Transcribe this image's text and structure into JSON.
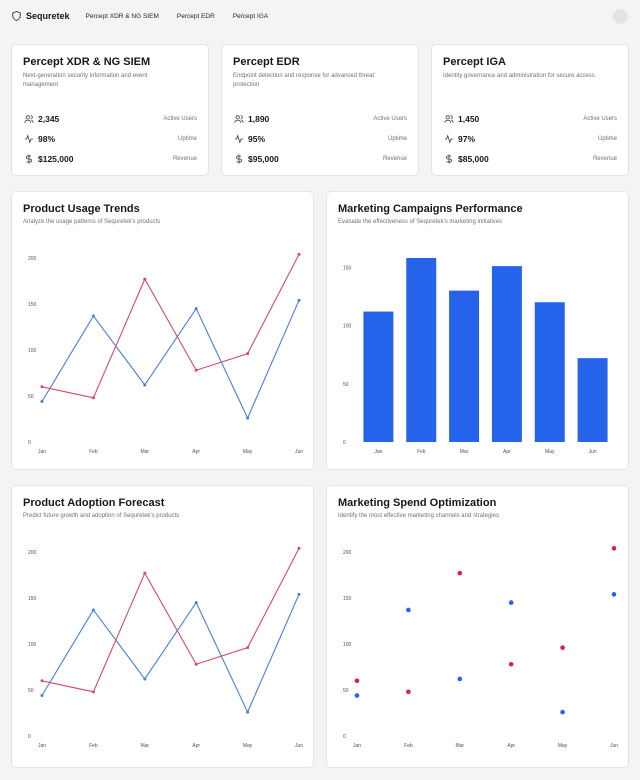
{
  "header": {
    "brand": "Sequretek",
    "nav": [
      "Percept XDR & NG SIEM",
      "Percept EDR",
      "Percept IGA"
    ]
  },
  "products": [
    {
      "name": "Percept XDR & NG SIEM",
      "description": "Next-generation security information and event management",
      "stats": [
        {
          "icon": "users-icon",
          "value": "2,345",
          "label": "Active Users"
        },
        {
          "icon": "activity-icon",
          "value": "98%",
          "label": "Uptime"
        },
        {
          "icon": "dollar-icon",
          "value": "$125,000",
          "label": "Revenue"
        }
      ]
    },
    {
      "name": "Percept EDR",
      "description": "Endpoint detection and response for advanced threat protection",
      "stats": [
        {
          "icon": "users-icon",
          "value": "1,890",
          "label": "Active Users"
        },
        {
          "icon": "activity-icon",
          "value": "95%",
          "label": "Uptime"
        },
        {
          "icon": "dollar-icon",
          "value": "$95,000",
          "label": "Revenue"
        }
      ]
    },
    {
      "name": "Percept IGA",
      "description": "Identity governance and administration for secure access",
      "stats": [
        {
          "icon": "users-icon",
          "value": "1,450",
          "label": "Active Users"
        },
        {
          "icon": "activity-icon",
          "value": "97%",
          "label": "Uptime"
        },
        {
          "icon": "dollar-icon",
          "value": "$85,000",
          "label": "Revenue"
        }
      ]
    }
  ],
  "colors": {
    "blue": "#2563eb",
    "red": "#e11d48",
    "blueLine": "#4a7fd4",
    "redLine": "#d04d6b"
  },
  "chart_data": [
    {
      "type": "line",
      "title": "Product Usage Trends",
      "subtitle": "Analyze the usage patterns of Sequretek's products",
      "categories": [
        "Jan",
        "Feb",
        "Mar",
        "Apr",
        "May",
        "Jun"
      ],
      "yticks": [
        0,
        50,
        100,
        150,
        200
      ],
      "ylim": [
        0,
        200
      ],
      "series": [
        {
          "values": [
            44,
            137,
            62,
            145,
            26,
            154
          ],
          "color": "#4a7fd4"
        },
        {
          "values": [
            60,
            48,
            177,
            78,
            96,
            204
          ],
          "color": "#d04d6b"
        }
      ]
    },
    {
      "type": "bar",
      "title": "Marketing Campaigns Performance",
      "subtitle": "Evaluate the effectiveness of Sequretek's marketing initiatives",
      "categories": [
        "Jan",
        "Feb",
        "Mar",
        "Apr",
        "May",
        "Jun"
      ],
      "yticks": [
        0,
        50,
        100,
        150
      ],
      "ylim": [
        0,
        158
      ],
      "values": [
        112,
        158,
        130,
        151,
        120,
        72
      ],
      "color": "#2563eb"
    },
    {
      "type": "line",
      "title": "Product Adoption Forecast",
      "subtitle": "Predict future growth and adoption of Sequretek's products",
      "categories": [
        "Jan",
        "Feb",
        "Mar",
        "Apr",
        "May",
        "Jun"
      ],
      "yticks": [
        0,
        50,
        100,
        150,
        200
      ],
      "ylim": [
        0,
        200
      ],
      "series": [
        {
          "values": [
            44,
            137,
            62,
            145,
            26,
            154
          ],
          "color": "#4a7fd4"
        },
        {
          "values": [
            60,
            48,
            177,
            78,
            96,
            204
          ],
          "color": "#d04d6b"
        }
      ]
    },
    {
      "type": "scatter",
      "title": "Marketing Spend Optimization",
      "subtitle": "Identify the most effective marketing channels and strategies",
      "categories": [
        "Jan",
        "Feb",
        "Mar",
        "Apr",
        "May",
        "Jun"
      ],
      "yticks": [
        0,
        50,
        100,
        150,
        200
      ],
      "ylim": [
        0,
        200
      ],
      "series": [
        {
          "values": [
            44,
            137,
            62,
            145,
            26,
            154
          ],
          "color": "#2563eb"
        },
        {
          "values": [
            60,
            48,
            177,
            78,
            96,
            204
          ],
          "color": "#e11d48"
        }
      ]
    }
  ]
}
